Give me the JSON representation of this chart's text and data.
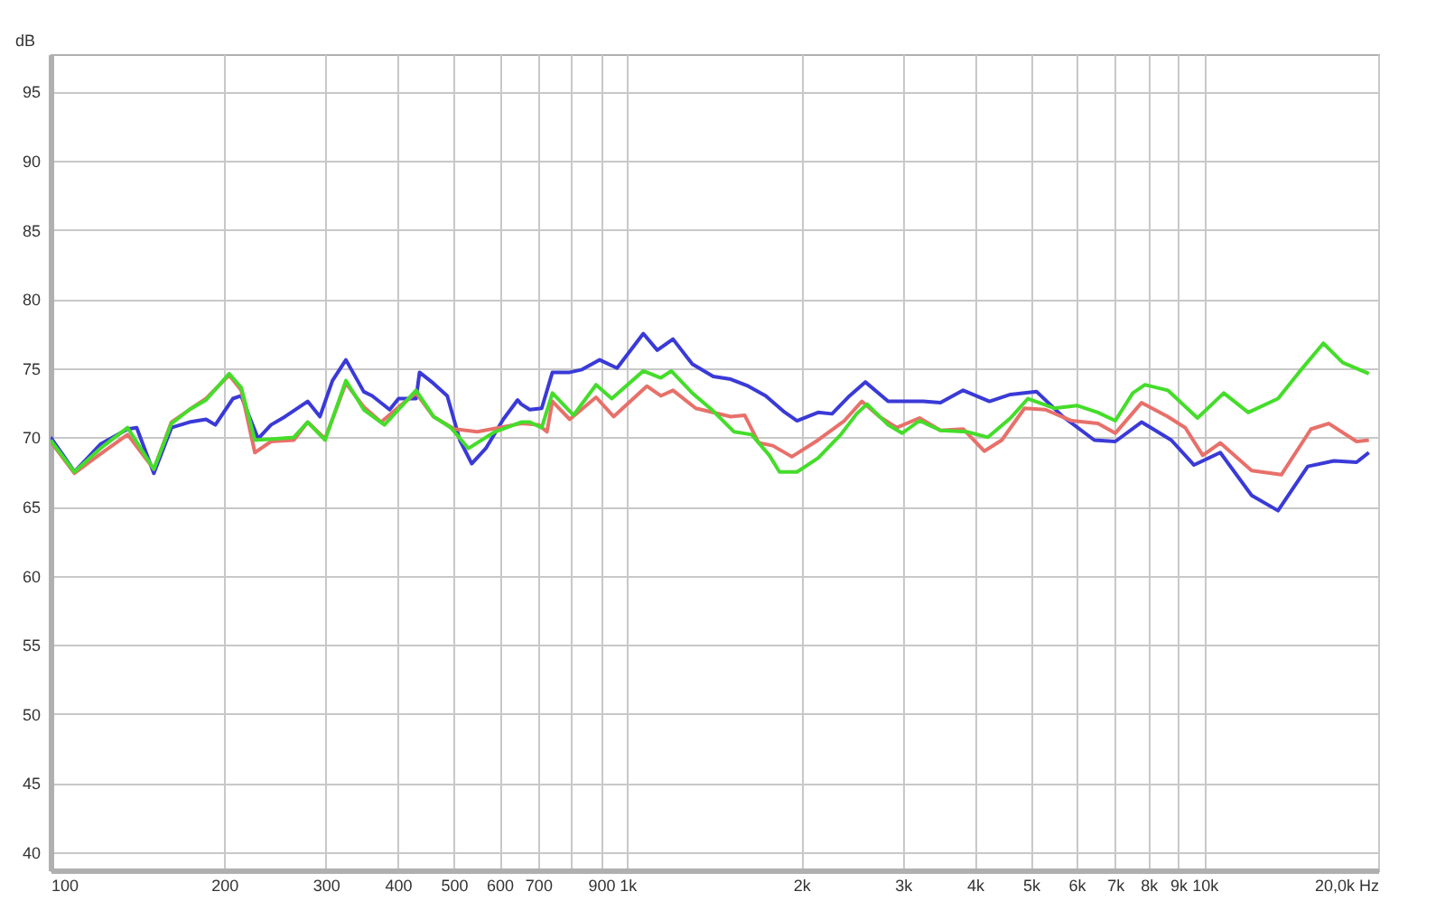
{
  "chart_data": {
    "type": "line",
    "ylabel": "dB",
    "log": "x",
    "grid": true,
    "line_style": "solid",
    "marker": "none",
    "xlim": [
      100,
      20000
    ],
    "ylim": [
      38.7,
      97.7
    ],
    "xticks": [
      100,
      200,
      300,
      400,
      500,
      600,
      700,
      {
        "value": 800,
        "label": null
      },
      900,
      {
        "value": 1000,
        "label": "1k"
      },
      {
        "value": 2000,
        "label": "2k"
      },
      {
        "value": 3000,
        "label": "3k"
      },
      {
        "value": 4000,
        "label": "4k"
      },
      {
        "value": 5000,
        "label": "5k"
      },
      {
        "value": 6000,
        "label": "6k"
      },
      {
        "value": 7000,
        "label": "7k"
      },
      {
        "value": 8000,
        "label": "8k"
      },
      {
        "value": 9000,
        "label": "9k"
      },
      {
        "value": 10000,
        "label": "10k"
      },
      {
        "value": 20000,
        "label": "20,0k Hz"
      }
    ],
    "yticks": [
      40,
      45,
      50,
      55,
      60,
      65,
      70,
      75,
      80,
      85,
      90,
      95
    ],
    "series": [
      {
        "color": "#3a3ad8",
        "x": [
          100,
          106,
          110,
          122,
          136,
          141,
          151,
          162,
          174,
          186,
          193,
          207,
          214,
          222,
          229,
          241,
          255,
          279,
          293,
          308,
          325,
          349,
          361,
          387,
          401,
          430,
          436,
          461,
          487,
          512,
          537,
          568,
          609,
          645,
          654,
          677,
          710,
          741,
          794,
          834,
          895,
          959,
          1065,
          1126,
          1199,
          1295,
          1408,
          1510,
          1619,
          1736,
          1861,
          1967,
          2139,
          2262,
          2426,
          2583,
          2829,
          3252,
          3486,
          3817,
          4240,
          4611,
          5118,
          5682,
          6443,
          7005,
          7778,
          8759,
          9590,
          10650,
          12070,
          13410,
          15100,
          16760,
          18350,
          19270
        ],
        "values": [
          70,
          68.5,
          67.5,
          69.5,
          70.6,
          70.7,
          67.4,
          70.7,
          71.1,
          71.3,
          70.9,
          72.8,
          73,
          71.3,
          69.9,
          70.9,
          71.5,
          72.6,
          71.5,
          74.1,
          75.6,
          73.3,
          73,
          72,
          72.8,
          72.8,
          74.7,
          73.9,
          73,
          69.8,
          68.1,
          69.2,
          71.3,
          72.7,
          72.4,
          72,
          72.1,
          74.7,
          74.7,
          74.9,
          75.6,
          75,
          77.5,
          76.3,
          77.1,
          75.3,
          74.4,
          74.2,
          73.7,
          73,
          71.9,
          71.2,
          71.8,
          71.7,
          73,
          74,
          72.6,
          72.6,
          72.5,
          73.4,
          72.6,
          73.1,
          73.3,
          71.5,
          69.8,
          69.7,
          71.1,
          69.8,
          68,
          68.9,
          65.8,
          64.7,
          67.9,
          68.3,
          68.2,
          68.9
        ]
      },
      {
        "color": "#e8706a",
        "x": [
          100,
          110,
          122,
          136,
          151,
          162,
          174,
          186,
          204,
          214,
          226,
          241,
          264,
          279,
          299,
          325,
          349,
          374,
          407,
          430,
          461,
          501,
          549,
          654,
          701,
          725,
          741,
          794,
          882,
          946,
          1080,
          1142,
          1199,
          1313,
          1510,
          1596,
          1688,
          1785,
          1927,
          2139,
          2376,
          2547,
          2732,
          2929,
          3207,
          3486,
          3817,
          4152,
          4453,
          4875,
          5300,
          5885,
          6535,
          7005,
          7778,
          8638,
          9262,
          9931,
          10650,
          12070,
          13590,
          15300,
          16420,
          18350,
          19270
        ],
        "values": [
          69.7,
          67.4,
          68.8,
          70.2,
          67.7,
          71.1,
          72,
          72.8,
          74.5,
          73.4,
          68.9,
          69.7,
          69.8,
          71.1,
          69.9,
          73.9,
          72.2,
          71.1,
          72.4,
          73.2,
          71.5,
          70.6,
          70.4,
          71,
          70.9,
          70.4,
          72.6,
          71.3,
          72.9,
          71.5,
          73.7,
          73,
          73.4,
          72.1,
          71.5,
          71.6,
          69.6,
          69.4,
          68.6,
          69.8,
          71.2,
          72.6,
          71.5,
          70.7,
          71.4,
          70.5,
          70.6,
          69,
          69.8,
          72.1,
          72,
          71.2,
          71,
          70.3,
          72.5,
          71.5,
          70.7,
          68.7,
          69.6,
          67.6,
          67.3,
          70.6,
          71,
          69.7,
          69.8
        ]
      },
      {
        "color": "#44dd2a",
        "x": [
          100,
          110,
          122,
          136,
          151,
          162,
          174,
          186,
          204,
          214,
          226,
          246,
          264,
          279,
          299,
          325,
          349,
          379,
          430,
          461,
          494,
          530,
          589,
          654,
          677,
          710,
          741,
          806,
          882,
          939,
          1065,
          1142,
          1191,
          1295,
          1408,
          1530,
          1641,
          1761,
          1834,
          1967,
          2139,
          2342,
          2495,
          2601,
          2829,
          2991,
          3207,
          3486,
          3871,
          4210,
          4611,
          4943,
          5489,
          6009,
          6535,
          7005,
          7511,
          7888,
          8638,
          9725,
          10800,
          11910,
          13410,
          14580,
          16070,
          17360,
          19270
        ],
        "values": [
          69.8,
          67.5,
          69.2,
          70.7,
          67.7,
          71,
          72,
          72.7,
          74.6,
          73.6,
          69.8,
          69.9,
          70,
          71.1,
          69.8,
          74.1,
          72,
          70.9,
          73.4,
          71.5,
          70.7,
          69.2,
          70.4,
          71.1,
          71.1,
          70.7,
          73.2,
          71.6,
          73.8,
          72.8,
          74.8,
          74.3,
          74.8,
          73.2,
          71.9,
          70.4,
          70.2,
          68.7,
          67.5,
          67.5,
          68.5,
          70.2,
          71.7,
          72.4,
          70.9,
          70.3,
          71.2,
          70.5,
          70.4,
          70,
          71.4,
          72.8,
          72.1,
          72.3,
          71.8,
          71.2,
          73.2,
          73.8,
          73.4,
          71.4,
          73.2,
          71.8,
          72.8,
          74.7,
          76.8,
          75.4,
          74.6
        ]
      }
    ]
  }
}
